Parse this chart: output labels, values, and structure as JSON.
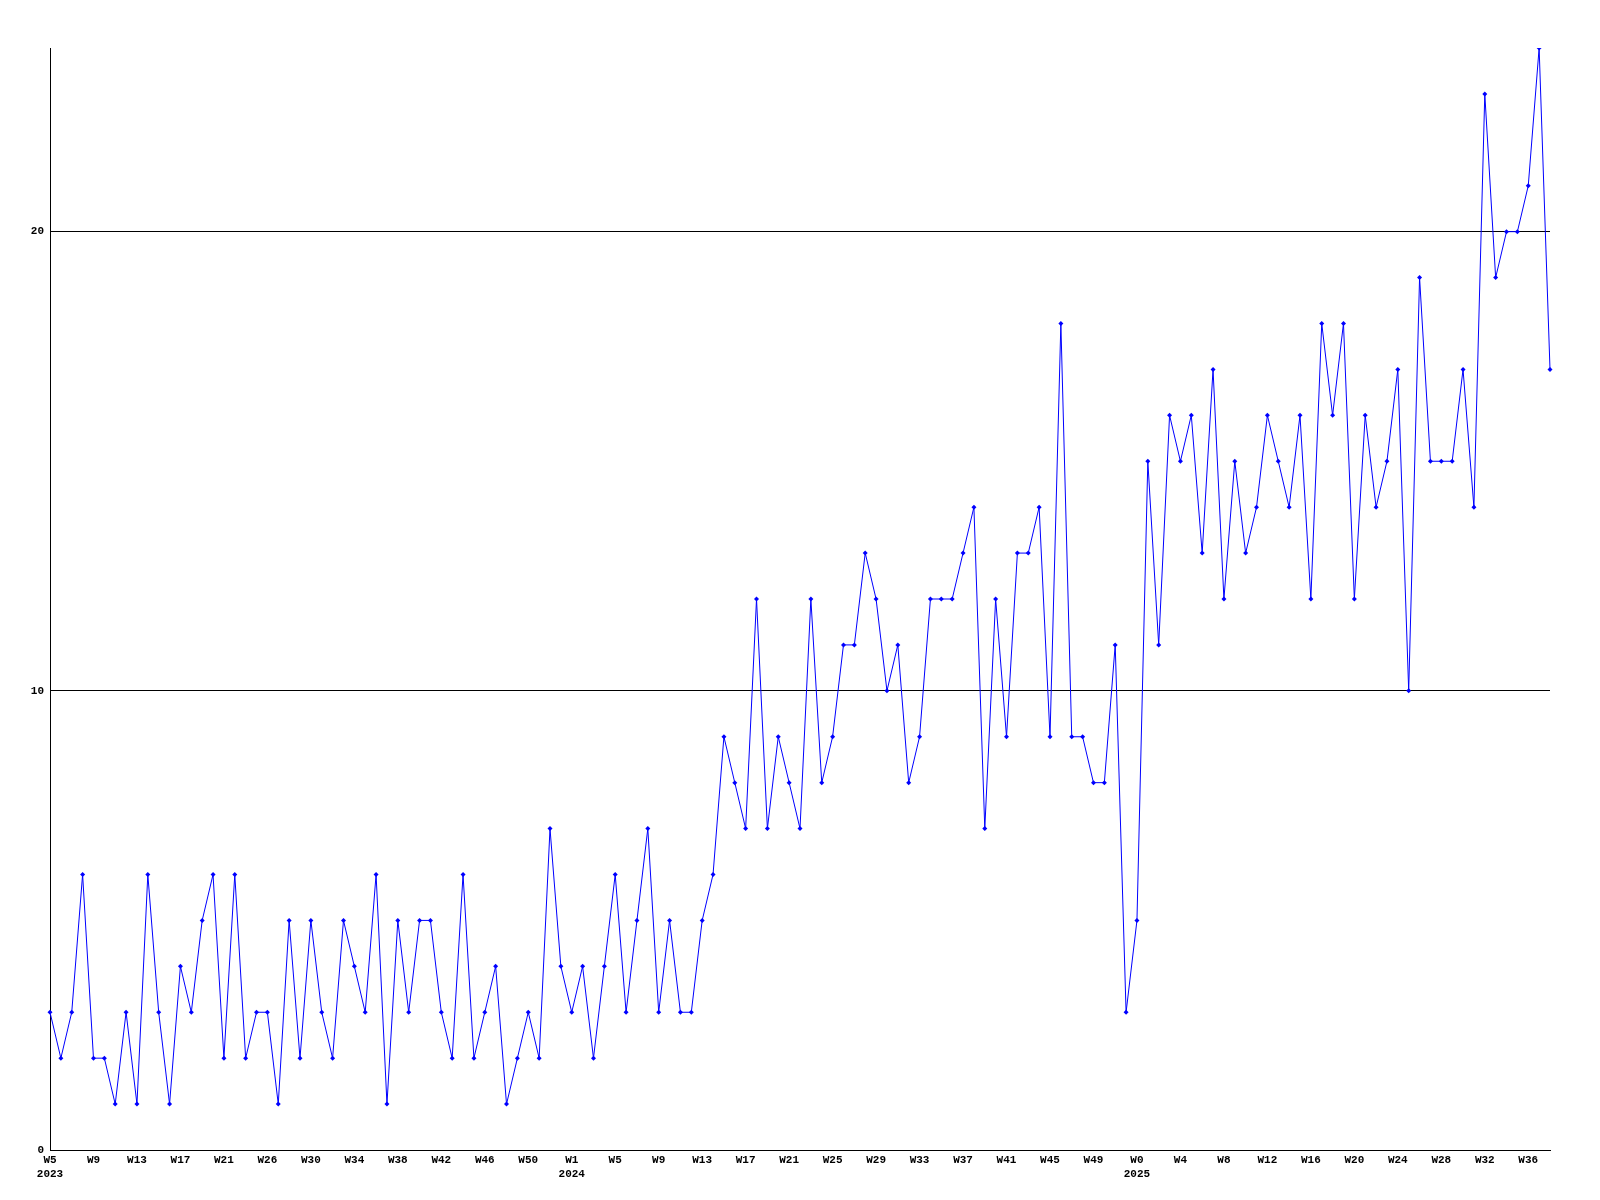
{
  "chart_data": {
    "type": "line",
    "categories": [
      "W5\n2023",
      null,
      null,
      null,
      "W9",
      null,
      null,
      null,
      "W13",
      null,
      null,
      null,
      "W17",
      null,
      null,
      null,
      "W21",
      null,
      null,
      null,
      "W26",
      null,
      null,
      null,
      "W30",
      null,
      null,
      null,
      "W34",
      null,
      null,
      null,
      "W38",
      null,
      null,
      null,
      "W42",
      null,
      null,
      null,
      "W46",
      null,
      null,
      null,
      "W50",
      null,
      null,
      null,
      "W1\n2024",
      null,
      null,
      null,
      "W5",
      null,
      null,
      null,
      "W9",
      null,
      null,
      null,
      "W13",
      null,
      null,
      null,
      "W17",
      null,
      null,
      null,
      "W21",
      null,
      null,
      null,
      "W25",
      null,
      null,
      null,
      "W29",
      null,
      null,
      null,
      "W33",
      null,
      null,
      null,
      "W37",
      null,
      null,
      null,
      "W41",
      null,
      null,
      null,
      "W45",
      null,
      null,
      null,
      "W49",
      null,
      null,
      null,
      "W0\n2025",
      null,
      null,
      null,
      "W4",
      null,
      null,
      null,
      "W8",
      null,
      null,
      null,
      "W12",
      null,
      null,
      null,
      "W16",
      null,
      null,
      null,
      "W20",
      null,
      null,
      null,
      "W24",
      null,
      null,
      null,
      "W28",
      null,
      null,
      null,
      "W32",
      null,
      null,
      null,
      "W36",
      null,
      null
    ],
    "values": [
      3,
      2,
      3,
      6,
      2,
      2,
      1,
      3,
      1,
      6,
      3,
      1,
      4,
      3,
      5,
      6,
      2,
      6,
      2,
      3,
      3,
      1,
      5,
      2,
      5,
      3,
      2,
      5,
      4,
      3,
      6,
      1,
      5,
      3,
      5,
      5,
      3,
      2,
      6,
      2,
      3,
      4,
      1,
      2,
      3,
      2,
      7,
      4,
      3,
      4,
      2,
      4,
      6,
      3,
      5,
      7,
      3,
      5,
      3,
      3,
      5,
      6,
      9,
      8,
      7,
      12,
      7,
      9,
      8,
      7,
      12,
      8,
      9,
      11,
      11,
      13,
      12,
      10,
      11,
      8,
      9,
      12,
      12,
      12,
      13,
      14,
      7,
      12,
      9,
      13,
      13,
      14,
      9,
      18,
      9,
      9,
      8,
      8,
      11,
      3,
      5,
      15,
      11,
      16,
      15,
      16,
      13,
      17,
      12,
      15,
      13,
      14,
      16,
      15,
      14,
      16,
      12,
      18,
      16,
      18,
      12,
      16,
      14,
      15,
      17,
      10,
      19,
      15,
      15,
      15,
      17,
      14,
      23,
      19,
      20,
      20,
      21,
      24,
      17
    ],
    "color": "#0000ff",
    "ylim": [
      0,
      24
    ],
    "yticks": [
      0,
      10,
      20
    ],
    "grid": "y",
    "marker": "diamond"
  }
}
